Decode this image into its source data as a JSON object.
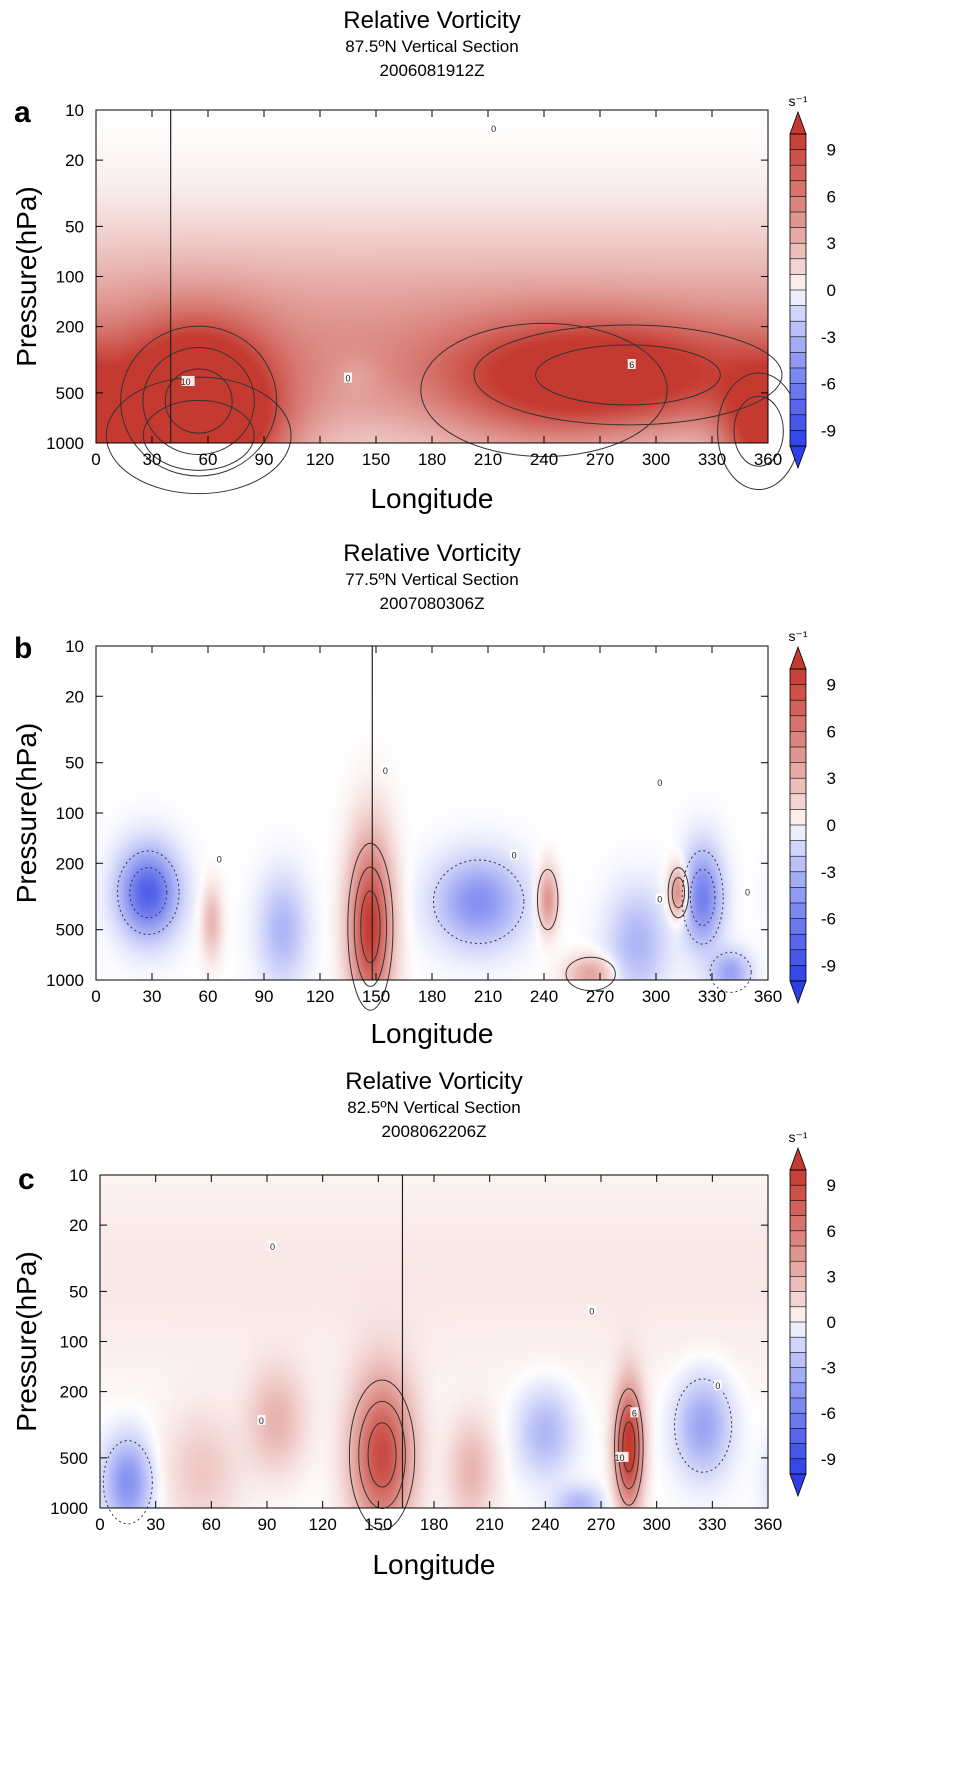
{
  "colors": {
    "positive": "#c53a30",
    "negative": "#2c3fe6",
    "zero": "#ffffff",
    "axis": "#000000"
  },
  "chart_data": [
    {
      "type": "heatmap",
      "panel_label": "a",
      "title": "Relative Vorticity",
      "subtitle": "87.5ºN Vertical Section",
      "time_label": "2006081912Z",
      "xlabel": "Longitude",
      "ylabel": "Pressure(hPa)",
      "xlim": [
        0,
        360
      ],
      "ylim": [
        1000,
        10
      ],
      "yscale": "log",
      "xticks": [
        0,
        30,
        60,
        90,
        120,
        150,
        180,
        210,
        240,
        270,
        300,
        330,
        360
      ],
      "yticks": [
        10,
        20,
        50,
        100,
        200,
        500,
        1000
      ],
      "marker_longitude": 40,
      "colorbar": {
        "unit": "s⁻¹",
        "ticks": [
          9,
          6,
          3,
          0,
          -3,
          -6,
          -9
        ],
        "range": [
          -10,
          10
        ]
      },
      "features": [
        {
          "lon": 55,
          "p": 560,
          "value": 10,
          "lon_width": 38,
          "p_width": 0.45
        },
        {
          "lon": 55,
          "p": 900,
          "value": 7,
          "lon_width": 45,
          "p_width": 0.35
        },
        {
          "lon": 285,
          "p": 390,
          "value": 6,
          "lon_width": 75,
          "p_width": 0.3
        },
        {
          "lon": 240,
          "p": 480,
          "value": 4,
          "lon_width": 60,
          "p_width": 0.4
        },
        {
          "lon": 355,
          "p": 850,
          "value": 7,
          "lon_width": 20,
          "p_width": 0.35
        },
        {
          "lon": 140,
          "p": 390,
          "value": -1,
          "lon_width": 12,
          "p_width": 0.12
        }
      ],
      "layers": [
        {
          "p": 300,
          "value": 4.5,
          "p_width": 0.55
        },
        {
          "p": 80,
          "value": 1,
          "p_width": 0.45
        }
      ],
      "contour_labels": [
        {
          "lon": 48,
          "p": 430,
          "text": "10"
        },
        {
          "lon": 287,
          "p": 340,
          "text": "6"
        },
        {
          "lon": 135,
          "p": 410,
          "text": "0"
        },
        {
          "lon": 213,
          "p": 13,
          "text": "0"
        }
      ]
    },
    {
      "type": "heatmap",
      "panel_label": "b",
      "title": "Relative Vorticity",
      "subtitle": "77.5ºN Vertical Section",
      "time_label": "2007080306Z",
      "xlabel": "Longitude",
      "ylabel": "Pressure(hPa)",
      "xlim": [
        0,
        360
      ],
      "ylim": [
        1000,
        10
      ],
      "yscale": "log",
      "xticks": [
        0,
        30,
        60,
        90,
        120,
        150,
        180,
        210,
        240,
        270,
        300,
        330,
        360
      ],
      "yticks": [
        10,
        20,
        50,
        100,
        200,
        500,
        1000
      ],
      "marker_longitude": 148,
      "colorbar": {
        "unit": "s⁻¹",
        "ticks": [
          9,
          6,
          3,
          0,
          -3,
          -6,
          -9
        ],
        "range": [
          -10,
          10
        ]
      },
      "features": [
        {
          "lon": 147,
          "p": 480,
          "value": 10,
          "lon_width": 11,
          "p_width": 0.5
        },
        {
          "lon": 28,
          "p": 300,
          "value": -8,
          "lon_width": 15,
          "p_width": 0.25
        },
        {
          "lon": 205,
          "p": 340,
          "value": -5,
          "lon_width": 22,
          "p_width": 0.25
        },
        {
          "lon": 325,
          "p": 320,
          "value": -6,
          "lon_width": 10,
          "p_width": 0.28
        },
        {
          "lon": 312,
          "p": 300,
          "value": 6,
          "lon_width": 5,
          "p_width": 0.15
        },
        {
          "lon": 242,
          "p": 330,
          "value": 5,
          "lon_width": 5,
          "p_width": 0.18
        },
        {
          "lon": 265,
          "p": 920,
          "value": 4,
          "lon_width": 12,
          "p_width": 0.1
        },
        {
          "lon": 100,
          "p": 500,
          "value": -3,
          "lon_width": 12,
          "p_width": 0.3
        },
        {
          "lon": 290,
          "p": 600,
          "value": -3,
          "lon_width": 15,
          "p_width": 0.3
        },
        {
          "lon": 340,
          "p": 900,
          "value": -4,
          "lon_width": 10,
          "p_width": 0.12
        },
        {
          "lon": 62,
          "p": 450,
          "value": 3,
          "lon_width": 5,
          "p_width": 0.2
        }
      ],
      "layers": [],
      "contour_labels": [
        {
          "lon": 155,
          "p": 56,
          "text": "0"
        },
        {
          "lon": 302,
          "p": 66,
          "text": "0"
        },
        {
          "lon": 224,
          "p": 180,
          "text": "0"
        },
        {
          "lon": 66,
          "p": 190,
          "text": "0"
        },
        {
          "lon": 302,
          "p": 330,
          "text": "0"
        },
        {
          "lon": 349,
          "p": 300,
          "text": "0"
        }
      ]
    },
    {
      "type": "heatmap",
      "panel_label": "c",
      "title": "Relative Vorticity",
      "subtitle": "82.5ºN Vertical Section",
      "time_label": "2008062206Z",
      "xlabel": "Longitude",
      "ylabel": "Pressure(hPa)",
      "xlim": [
        0,
        360
      ],
      "ylim": [
        1000,
        10
      ],
      "yscale": "log",
      "xticks": [
        0,
        30,
        60,
        90,
        120,
        150,
        180,
        210,
        240,
        270,
        300,
        330,
        360
      ],
      "yticks": [
        10,
        20,
        50,
        100,
        200,
        500,
        1000
      ],
      "marker_longitude": 163,
      "colorbar": {
        "unit": "s⁻¹",
        "ticks": [
          9,
          6,
          3,
          0,
          -3,
          -6,
          -9
        ],
        "range": [
          -10,
          10
        ]
      },
      "features": [
        {
          "lon": 152,
          "p": 480,
          "value": 9,
          "lon_width": 16,
          "p_width": 0.45
        },
        {
          "lon": 285,
          "p": 430,
          "value": 11,
          "lon_width": 7,
          "p_width": 0.35
        },
        {
          "lon": 15,
          "p": 700,
          "value": -5,
          "lon_width": 12,
          "p_width": 0.25
        },
        {
          "lon": 325,
          "p": 320,
          "value": -4,
          "lon_width": 14,
          "p_width": 0.28
        },
        {
          "lon": 240,
          "p": 350,
          "value": -3,
          "lon_width": 14,
          "p_width": 0.25
        },
        {
          "lon": 95,
          "p": 300,
          "value": 3,
          "lon_width": 15,
          "p_width": 0.3
        },
        {
          "lon": 200,
          "p": 600,
          "value": 3,
          "lon_width": 12,
          "p_width": 0.3
        },
        {
          "lon": 258,
          "p": 950,
          "value": -3,
          "lon_width": 12,
          "p_width": 0.1
        },
        {
          "lon": 55,
          "p": 600,
          "value": 2,
          "lon_width": 20,
          "p_width": 0.35
        }
      ],
      "layers": [
        {
          "p": 40,
          "value": 0.7,
          "p_width": 0.6
        }
      ],
      "contour_labels": [
        {
          "lon": 93,
          "p": 27,
          "text": "0"
        },
        {
          "lon": 265,
          "p": 66,
          "text": "0"
        },
        {
          "lon": 87,
          "p": 300,
          "text": "0"
        },
        {
          "lon": 333,
          "p": 185,
          "text": "0"
        },
        {
          "lon": 288,
          "p": 270,
          "text": "6"
        },
        {
          "lon": 280,
          "p": 500,
          "text": "10"
        }
      ]
    }
  ]
}
